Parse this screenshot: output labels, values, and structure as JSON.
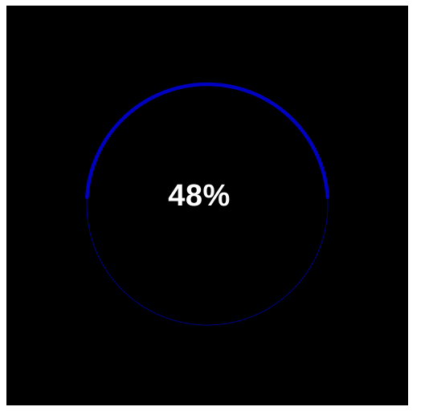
{
  "progress": {
    "value": 48,
    "label": "48%"
  },
  "colors": {
    "background": "#000000",
    "track": "#00008b",
    "fill": "#0000c0",
    "text": "#ffffff"
  }
}
